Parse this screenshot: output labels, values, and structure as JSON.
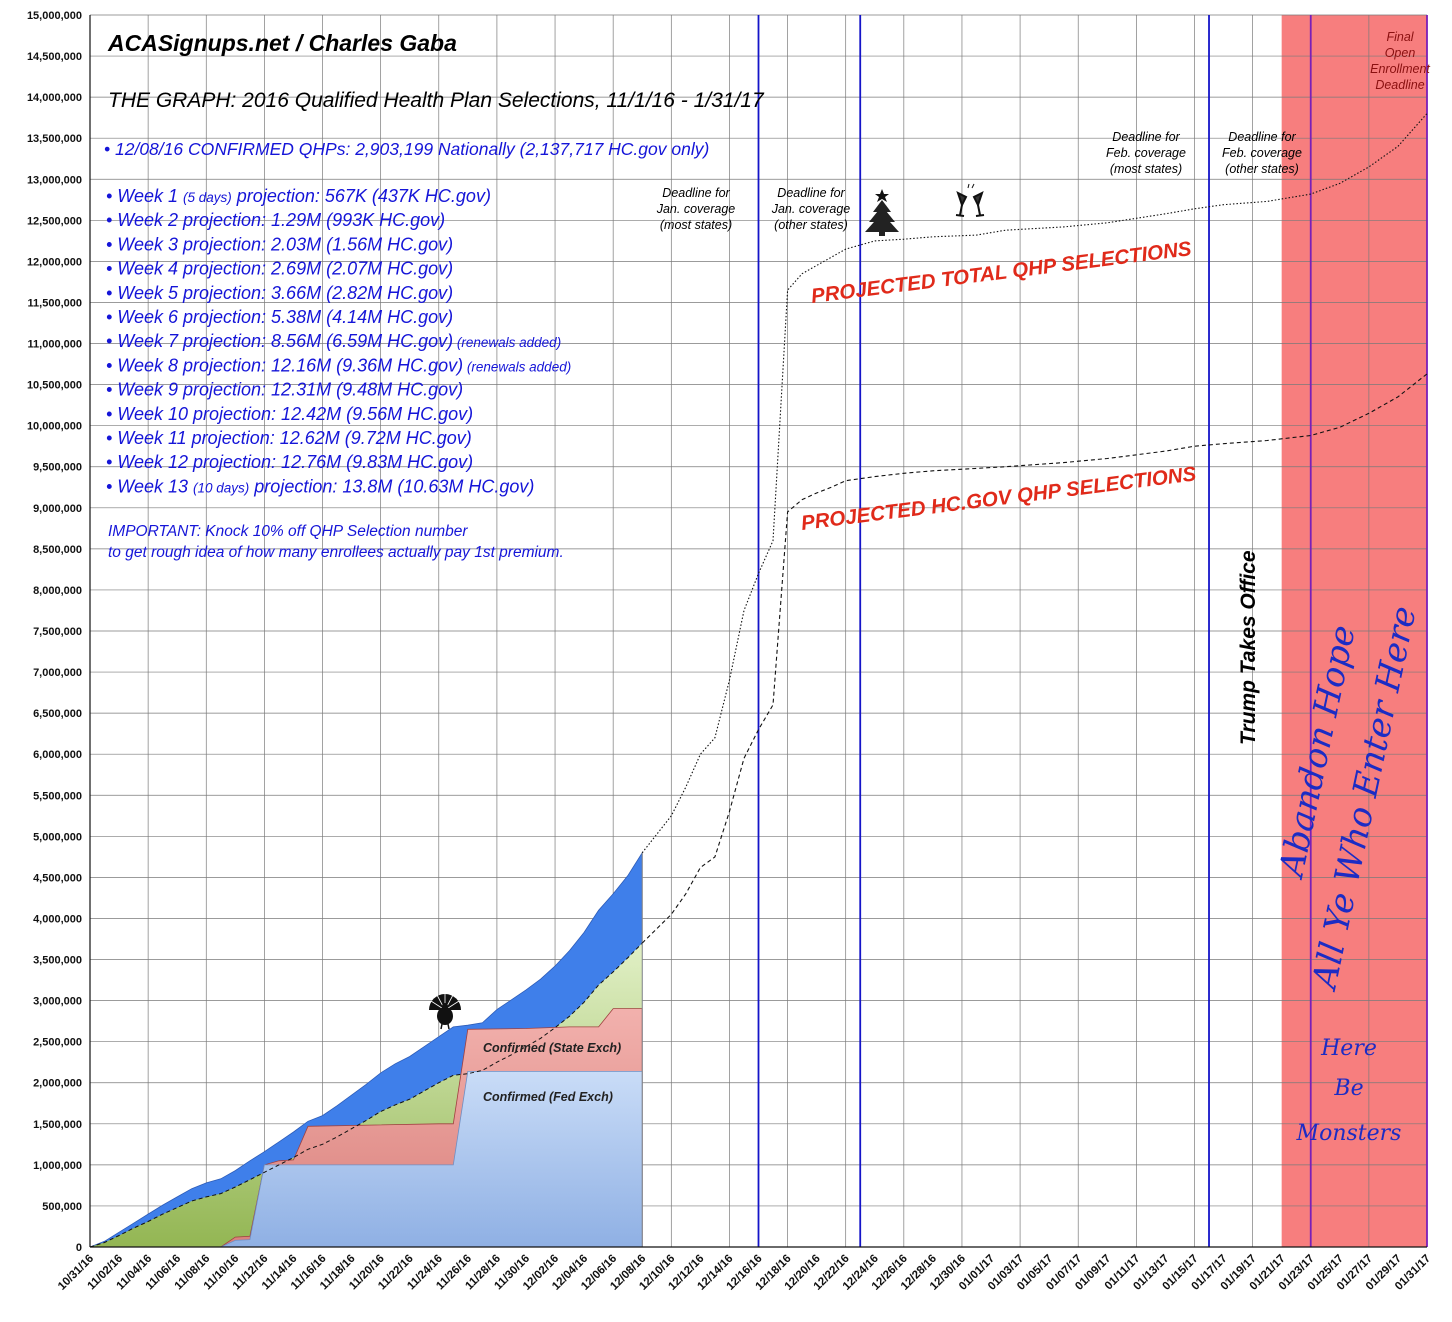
{
  "chart_data": {
    "type": "area",
    "title": "ACASignups.net / Charles Gaba",
    "subtitle": "THE GRAPH: 2016 Qualified Health Plan Selections, 11/1/16 - 1/31/17",
    "xlabel": "",
    "ylabel": "",
    "ylim": [
      0,
      15000000
    ],
    "grid": true,
    "y_ticks": [
      "0",
      "500,000",
      "1,000,000",
      "1,500,000",
      "2,000,000",
      "2,500,000",
      "3,000,000",
      "3,500,000",
      "4,000,000",
      "4,500,000",
      "5,000,000",
      "5,500,000",
      "6,000,000",
      "6,500,000",
      "7,000,000",
      "7,500,000",
      "8,000,000",
      "8,500,000",
      "9,000,000",
      "9,500,000",
      "10,000,000",
      "10,500,000",
      "11,000,000",
      "11,500,000",
      "12,000,000",
      "12,500,000",
      "13,000,000",
      "13,500,000",
      "14,000,000",
      "14,500,000",
      "15,000,000"
    ],
    "x_ticks": [
      "10/31/16",
      "11/02/16",
      "11/04/16",
      "11/06/16",
      "11/08/16",
      "11/10/16",
      "11/12/16",
      "11/14/16",
      "11/16/16",
      "11/18/16",
      "11/20/16",
      "11/22/16",
      "11/24/16",
      "11/26/16",
      "11/28/16",
      "11/30/16",
      "12/02/16",
      "12/04/16",
      "12/06/16",
      "12/08/16",
      "12/10/16",
      "12/12/16",
      "12/14/16",
      "12/16/16",
      "12/18/16",
      "12/20/16",
      "12/22/16",
      "12/24/16",
      "12/26/16",
      "12/28/16",
      "12/30/16",
      "01/01/17",
      "01/03/17",
      "01/05/17",
      "01/07/17",
      "01/09/17",
      "01/11/17",
      "01/13/17",
      "01/15/17",
      "01/17/17",
      "01/19/17",
      "01/21/17",
      "01/23/17",
      "01/25/17",
      "01/27/17",
      "01/29/17",
      "01/31/17"
    ],
    "colors": {
      "total_area": "#3f7fea",
      "hcgov_area": "#cfe6a8",
      "state_exch": "#e79a96",
      "fed_exch": "#b5cdf1",
      "green_early": "#9dbf62",
      "blue_text": "#1515d8",
      "red_text": "#e02a1a",
      "pink_zone": "#f77e7e",
      "blue_line": "#1414c8",
      "purple_line": "#7a1fb8"
    },
    "series": [
      {
        "name": "PROJECTED TOTAL QHP SELECTIONS",
        "style": "dotted",
        "points": [
          [
            "12/08/16",
            4800000
          ],
          [
            "12/10/16",
            5250000
          ],
          [
            "12/11/16",
            5600000
          ],
          [
            "12/12/16",
            6000000
          ],
          [
            "12/13/16",
            6200000
          ],
          [
            "12/14/16",
            6900000
          ],
          [
            "12/15/16",
            7750000
          ],
          [
            "12/16/16",
            8200000
          ],
          [
            "12/17/16",
            8600000
          ],
          [
            "12/18/16",
            11650000
          ],
          [
            "12/19/16",
            11850000
          ],
          [
            "12/20/16",
            11950000
          ],
          [
            "12/21/16",
            12050000
          ],
          [
            "12/22/16",
            12150000
          ],
          [
            "12/23/16",
            12200000
          ],
          [
            "12/24/16",
            12250000
          ],
          [
            "12/26/16",
            12270000
          ],
          [
            "12/28/16",
            12300000
          ],
          [
            "12/31/16",
            12320000
          ],
          [
            "01/02/17",
            12380000
          ],
          [
            "01/06/17",
            12420000
          ],
          [
            "01/09/17",
            12470000
          ],
          [
            "01/13/17",
            12580000
          ],
          [
            "01/15/17",
            12640000
          ],
          [
            "01/17/17",
            12690000
          ],
          [
            "01/20/17",
            12730000
          ],
          [
            "01/23/17",
            12820000
          ],
          [
            "01/25/17",
            12950000
          ],
          [
            "01/27/17",
            13150000
          ],
          [
            "01/29/17",
            13400000
          ],
          [
            "01/31/17",
            13800000
          ]
        ]
      },
      {
        "name": "PROJECTED HC.GOV QHP SELECTIONS",
        "style": "dashed",
        "points": [
          [
            "12/08/16",
            3700000
          ],
          [
            "12/10/16",
            4050000
          ],
          [
            "12/11/16",
            4300000
          ],
          [
            "12/12/16",
            4620000
          ],
          [
            "12/13/16",
            4750000
          ],
          [
            "12/14/16",
            5300000
          ],
          [
            "12/15/16",
            5950000
          ],
          [
            "12/16/16",
            6300000
          ],
          [
            "12/17/16",
            6600000
          ],
          [
            "12/18/16",
            8950000
          ],
          [
            "12/19/16",
            9100000
          ],
          [
            "12/20/16",
            9180000
          ],
          [
            "12/21/16",
            9250000
          ],
          [
            "12/22/16",
            9330000
          ],
          [
            "12/24/16",
            9380000
          ],
          [
            "12/26/16",
            9420000
          ],
          [
            "12/28/16",
            9450000
          ],
          [
            "12/31/16",
            9480000
          ],
          [
            "01/02/17",
            9500000
          ],
          [
            "01/06/17",
            9550000
          ],
          [
            "01/09/17",
            9600000
          ],
          [
            "01/13/17",
            9690000
          ],
          [
            "01/15/17",
            9750000
          ],
          [
            "01/17/17",
            9780000
          ],
          [
            "01/20/17",
            9820000
          ],
          [
            "01/23/17",
            9880000
          ],
          [
            "01/25/17",
            9980000
          ],
          [
            "01/27/17",
            10150000
          ],
          [
            "01/29/17",
            10350000
          ],
          [
            "01/31/17",
            10630000
          ]
        ]
      },
      {
        "name": "",
        "role": "total-actual",
        "points": [
          [
            "10/31/16",
            0
          ],
          [
            "11/01/16",
            70000
          ],
          [
            "11/02/16",
            180000
          ],
          [
            "11/03/16",
            290000
          ],
          [
            "11/04/16",
            400000
          ],
          [
            "11/05/16",
            510000
          ],
          [
            "11/06/16",
            610000
          ],
          [
            "11/07/16",
            710000
          ],
          [
            "11/08/16",
            780000
          ],
          [
            "11/09/16",
            830000
          ],
          [
            "11/10/16",
            930000
          ],
          [
            "11/11/16",
            1050000
          ],
          [
            "11/12/16",
            1160000
          ],
          [
            "11/13/16",
            1280000
          ],
          [
            "11/14/16",
            1400000
          ],
          [
            "11/15/16",
            1530000
          ],
          [
            "11/16/16",
            1600000
          ],
          [
            "11/17/16",
            1720000
          ],
          [
            "11/18/16",
            1850000
          ],
          [
            "11/19/16",
            1980000
          ],
          [
            "11/20/16",
            2120000
          ],
          [
            "11/21/16",
            2230000
          ],
          [
            "11/22/16",
            2320000
          ],
          [
            "11/23/16",
            2440000
          ],
          [
            "11/24/16",
            2560000
          ],
          [
            "11/25/16",
            2680000
          ],
          [
            "11/26/16",
            2700000
          ],
          [
            "11/27/16",
            2730000
          ],
          [
            "11/28/16",
            2890000
          ],
          [
            "11/29/16",
            3010000
          ],
          [
            "11/30/16",
            3130000
          ],
          [
            "12/01/16",
            3260000
          ],
          [
            "12/02/16",
            3420000
          ],
          [
            "12/03/16",
            3610000
          ],
          [
            "12/04/16",
            3830000
          ],
          [
            "12/05/16",
            4100000
          ],
          [
            "12/06/16",
            4300000
          ],
          [
            "12/07/16",
            4520000
          ],
          [
            "12/08/16",
            4800000
          ]
        ]
      },
      {
        "name": "",
        "role": "hcgov-actual",
        "points": [
          [
            "10/31/16",
            0
          ],
          [
            "11/01/16",
            55000
          ],
          [
            "11/02/16",
            140000
          ],
          [
            "11/03/16",
            230000
          ],
          [
            "11/04/16",
            310000
          ],
          [
            "11/05/16",
            400000
          ],
          [
            "11/06/16",
            480000
          ],
          [
            "11/07/16",
            560000
          ],
          [
            "11/08/16",
            610000
          ],
          [
            "11/09/16",
            650000
          ],
          [
            "11/10/16",
            730000
          ],
          [
            "11/11/16",
            820000
          ],
          [
            "11/12/16",
            910000
          ],
          [
            "11/13/16",
            1000000
          ],
          [
            "11/14/16",
            1090000
          ],
          [
            "11/15/16",
            1190000
          ],
          [
            "11/16/16",
            1250000
          ],
          [
            "11/17/16",
            1340000
          ],
          [
            "11/18/16",
            1440000
          ],
          [
            "11/19/16",
            1540000
          ],
          [
            "11/20/16",
            1650000
          ],
          [
            "11/21/16",
            1730000
          ],
          [
            "11/22/16",
            1800000
          ],
          [
            "11/23/16",
            1900000
          ],
          [
            "11/24/16",
            2000000
          ],
          [
            "11/25/16",
            2090000
          ],
          [
            "11/26/16",
            2110000
          ],
          [
            "11/27/16",
            2150000
          ],
          [
            "11/28/16",
            2250000
          ],
          [
            "11/29/16",
            2340000
          ],
          [
            "11/30/16",
            2440000
          ],
          [
            "12/01/16",
            2540000
          ],
          [
            "12/02/16",
            2670000
          ],
          [
            "12/03/16",
            2810000
          ],
          [
            "12/04/16",
            2980000
          ],
          [
            "12/05/16",
            3190000
          ],
          [
            "12/06/16",
            3350000
          ],
          [
            "12/07/16",
            3520000
          ],
          [
            "12/08/16",
            3700000
          ]
        ]
      },
      {
        "name": "Confirmed (State Exch)",
        "role": "confirmed-total",
        "points": [
          [
            "10/31/16",
            0
          ],
          [
            "11/09/16",
            0
          ],
          [
            "11/10/16",
            120000
          ],
          [
            "11/11/16",
            130000
          ],
          [
            "11/12/16",
            1000000
          ],
          [
            "11/13/16",
            1050000
          ],
          [
            "11/14/16",
            1060000
          ],
          [
            "11/15/16",
            1470000
          ],
          [
            "11/24/16",
            1500000
          ],
          [
            "11/25/16",
            1500000
          ],
          [
            "11/26/16",
            2650000
          ],
          [
            "11/30/16",
            2660000
          ],
          [
            "12/03/16",
            2680000
          ],
          [
            "12/05/16",
            2680000
          ],
          [
            "12/06/16",
            2903199
          ],
          [
            "12/08/16",
            2903199
          ]
        ]
      },
      {
        "name": "Confirmed (Fed Exch)",
        "role": "confirmed-fed",
        "points": [
          [
            "10/31/16",
            0
          ],
          [
            "11/09/16",
            0
          ],
          [
            "11/10/16",
            80000
          ],
          [
            "11/11/16",
            90000
          ],
          [
            "11/12/16",
            1000000
          ],
          [
            "11/25/16",
            1000000
          ],
          [
            "11/26/16",
            2137717
          ],
          [
            "12/08/16",
            2137717
          ]
        ]
      }
    ],
    "vertical_lines": [
      {
        "date": "12/16/16",
        "color": "blue"
      },
      {
        "date": "12/23/16",
        "color": "blue"
      },
      {
        "date": "01/16/17",
        "color": "blue"
      },
      {
        "date": "01/23/17",
        "color": "purple"
      },
      {
        "date": "01/31/17",
        "color": "purple"
      }
    ],
    "shaded_region": {
      "from": "01/21/17",
      "to": "01/31/17"
    }
  },
  "header": {
    "line1": "ACASignups.net / Charles Gaba",
    "line2": "THE GRAPH: 2016 Qualified Health Plan Selections, 11/1/16 - 1/31/17",
    "confirmed": "• 12/08/16 CONFIRMED QHPs: 2,903,199 Nationally (2,137,717 HC.gov only)"
  },
  "weeks": [
    {
      "pre": "• Week 1 ",
      "small": "(5 days)",
      "main": " projection: 567K (437K HC.gov)",
      "note": ""
    },
    {
      "pre": "• Week 2 projection: 1.29M (993K HC.gov)",
      "small": "",
      "main": "",
      "note": ""
    },
    {
      "pre": "• Week 3 projection: 2.03M (1.56M HC.gov)",
      "small": "",
      "main": "",
      "note": ""
    },
    {
      "pre": "• Week 4 projection: 2.69M (2.07M HC.gov)",
      "small": "",
      "main": "",
      "note": ""
    },
    {
      "pre": "• Week 5 projection: 3.66M (2.82M HC.gov)",
      "small": "",
      "main": "",
      "note": ""
    },
    {
      "pre": "• Week 6 projection: 5.38M (4.14M HC.gov)",
      "small": "",
      "main": "",
      "note": ""
    },
    {
      "pre": "• Week 7 projection: 8.56M (6.59M HC.gov)",
      "small": "",
      "main": "",
      "note": " (renewals added)"
    },
    {
      "pre": "• Week 8 projection: 12.16M (9.36M HC.gov)",
      "small": "",
      "main": "",
      "note": " (renewals added)"
    },
    {
      "pre": "• Week 9 projection: 12.31M (9.48M HC.gov)",
      "small": "",
      "main": "",
      "note": ""
    },
    {
      "pre": "• Week 10 projection: 12.42M (9.56M HC.gov)",
      "small": "",
      "main": "",
      "note": ""
    },
    {
      "pre": "• Week 11 projection: 12.62M (9.72M HC.gov)",
      "small": "",
      "main": "",
      "note": ""
    },
    {
      "pre": "• Week 12 projection: 12.76M (9.83M HC.gov)",
      "small": "",
      "main": "",
      "note": ""
    },
    {
      "pre": "• Week 13 ",
      "small": "(10 days)",
      "main": " projection: 13.8M (10.63M HC.gov)",
      "note": ""
    }
  ],
  "important": {
    "line1": "IMPORTANT: Knock 10% off QHP Selection number",
    "line2": "to get rough idea of how many enrollees actually pay 1st premium."
  },
  "annotations": {
    "deadline_jan_most": [
      "Deadline for",
      "Jan. coverage",
      "(most states)"
    ],
    "deadline_jan_other": [
      "Deadline for",
      "Jan. coverage",
      "(other states)"
    ],
    "deadline_feb_most": [
      "Deadline for",
      "Feb. coverage",
      "(most states)"
    ],
    "deadline_feb_other": [
      "Deadline for",
      "Feb. coverage",
      "(other states)"
    ],
    "final_deadline": [
      "Final",
      "Open",
      "Enrollment",
      "Deadline"
    ],
    "projected_total": "PROJECTED TOTAL QHP SELECTIONS",
    "projected_hcgov": "PROJECTED HC.GOV QHP SELECTIONS",
    "confirmed_state": "Confirmed (State Exch)",
    "confirmed_fed": "Confirmed (Fed Exch)",
    "trump": "Trump Takes Office",
    "abandon_1": "Abandon Hope",
    "abandon_2": "All Ye Who Enter Here",
    "monsters": [
      "Here",
      "Be",
      "Monsters"
    ],
    "icons": [
      "turkey-icon",
      "christmas-tree-icon",
      "champagne-glasses-icon"
    ]
  }
}
